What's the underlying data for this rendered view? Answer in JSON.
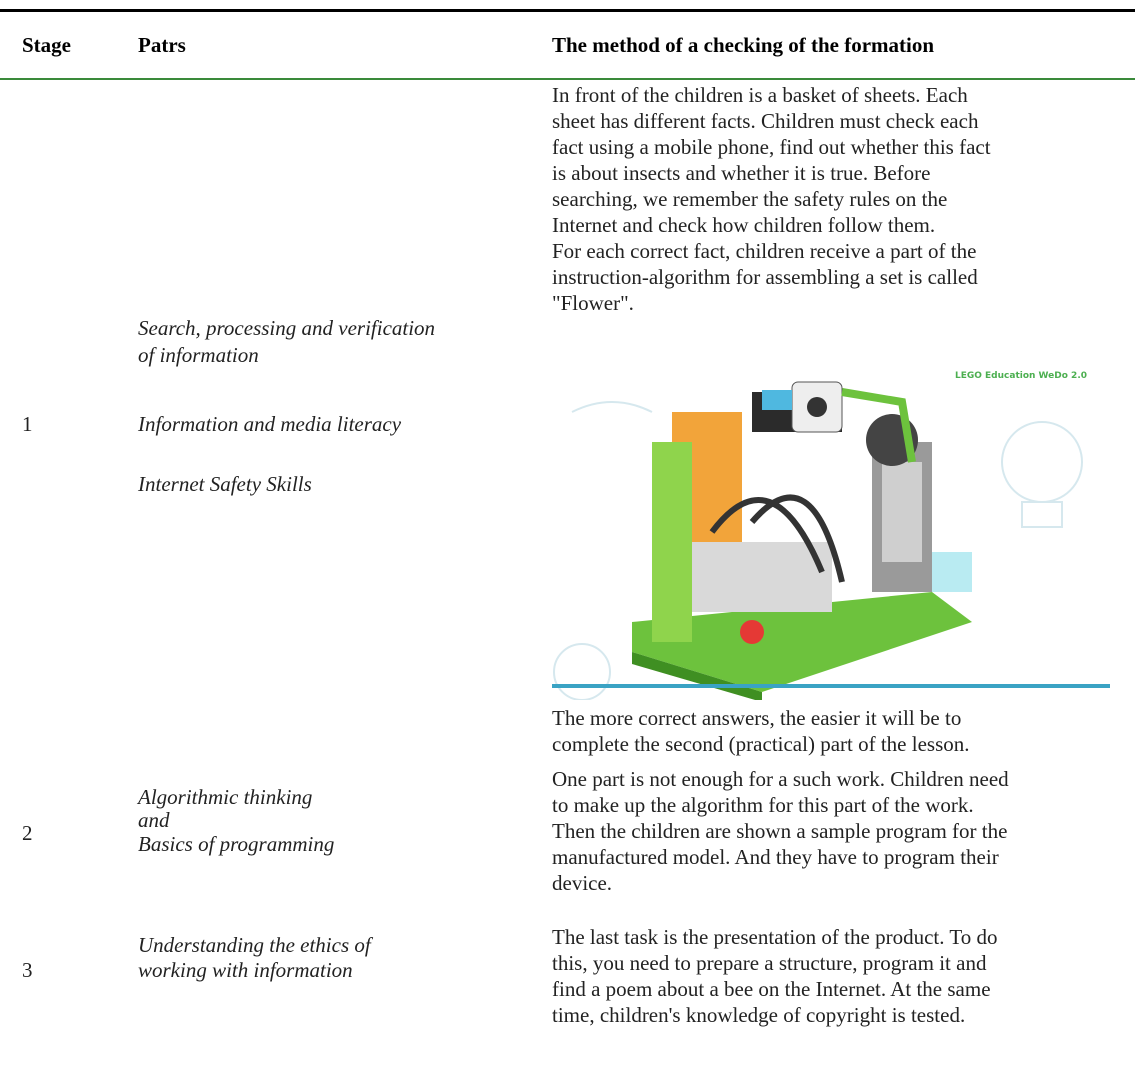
{
  "header": {
    "stage": "Stage",
    "parts": "Patrs",
    "method": "The method of a checking of the formation"
  },
  "rows": [
    {
      "stage": "1",
      "parts": [
        "Search, processing and verification",
        "of information",
        "Information and media literacy",
        "Internet Safety Skills"
      ],
      "method": [
        "In front of the children is a basket of sheets. Each",
        "sheet has different facts. Children must check each",
        "fact using a mobile phone, find out whether this fact",
        "is about insects and whether it is true. Before",
        "searching, we remember the safety rules on the",
        "Internet and check how children follow them.",
        "For each correct fact, children receive a part of the",
        "instruction-algorithm for assembling a set is called",
        "\"Flower\"."
      ],
      "image_caption": "LEGO Education WeDo 2.0",
      "method_after": [
        "The more correct answers, the easier it will be to",
        "complete the second (practical) part of the lesson."
      ]
    },
    {
      "stage": "2",
      "parts": [
        "Algorithmic thinking",
        "and",
        "Basics of programming"
      ],
      "method": [
        "One part is not enough for a such work. Children need",
        "to make up the algorithm for this part of the work.",
        "Then the children are shown a sample program for the",
        "manufactured model. And they have to program their",
        "device."
      ]
    },
    {
      "stage": "3",
      "parts": [
        "Understanding the ethics of",
        "working with information"
      ],
      "method": [
        "The last task is the presentation of the product. To do",
        "this, you need to prepare a structure, program it and",
        "find a poem about a bee on the Internet. At the same",
        "time, children's knowledge of copyright is tested."
      ]
    }
  ]
}
